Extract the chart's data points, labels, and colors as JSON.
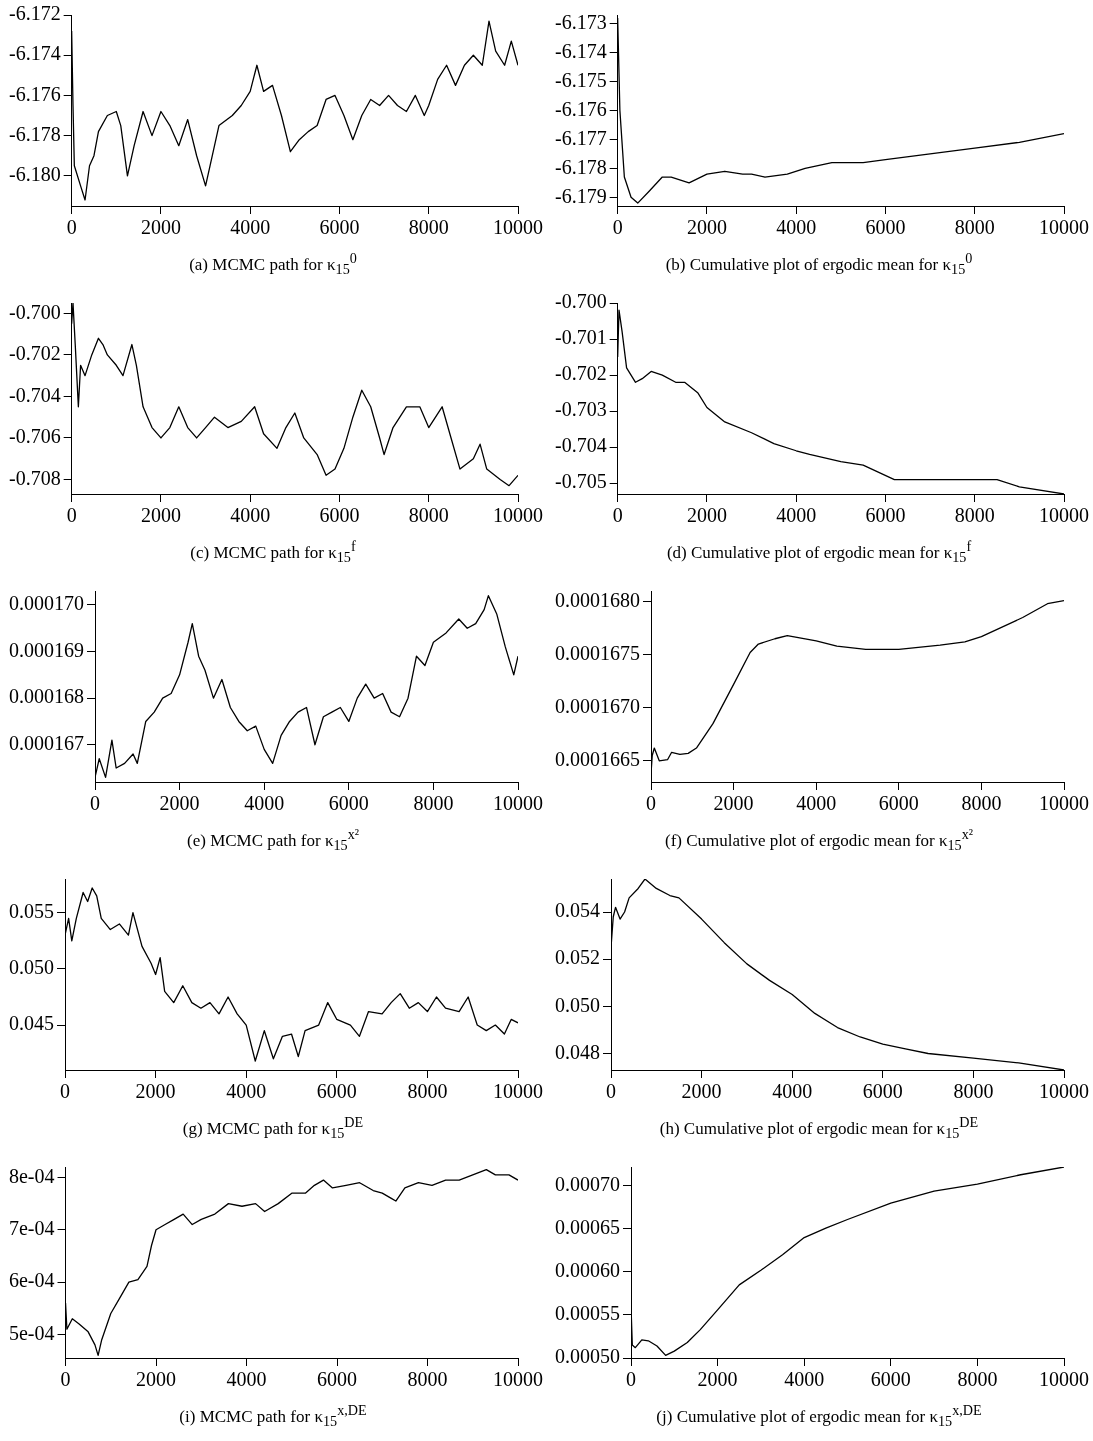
{
  "chart_data": [
    {
      "type": "line",
      "title": "(a) MCMC path for κ$_{15}$$^{0}$",
      "color": "#000000",
      "marker": "none",
      "xlim": [
        0,
        10000
      ],
      "xticks": [
        0,
        2000,
        4000,
        6000,
        8000,
        10000
      ],
      "ylim": [
        -6.1815,
        -6.172
      ],
      "yticks": [
        -6.172,
        -6.174,
        -6.176,
        -6.178,
        {
          "value": -6.18,
          "label": "-6.180"
        }
      ],
      "x": [
        0,
        30,
        60,
        200,
        300,
        400,
        500,
        600,
        800,
        1000,
        1100,
        1250,
        1400,
        1600,
        1800,
        2000,
        2200,
        2400,
        2600,
        2800,
        3000,
        3100,
        3300,
        3600,
        3800,
        4000,
        4150,
        4300,
        4500,
        4700,
        4900,
        5100,
        5300,
        5500,
        5700,
        5900,
        6100,
        6300,
        6500,
        6700,
        6900,
        7100,
        7300,
        7500,
        7700,
        7900,
        8000,
        8200,
        8400,
        8600,
        8800,
        9000,
        9200,
        9350,
        9500,
        9700,
        9850,
        10000
      ],
      "values": [
        -6.1728,
        -6.1765,
        -6.1795,
        -6.1805,
        -6.1812,
        -6.1795,
        -6.179,
        -6.1778,
        -6.177,
        -6.1768,
        -6.1775,
        -6.18,
        -6.1785,
        -6.1768,
        -6.178,
        -6.1768,
        -6.1775,
        -6.1785,
        -6.1772,
        -6.179,
        -6.1805,
        -6.1795,
        -6.1775,
        -6.177,
        -6.1765,
        -6.1758,
        -6.1745,
        -6.1758,
        -6.1755,
        -6.177,
        -6.1788,
        -6.1782,
        -6.1778,
        -6.1775,
        -6.1762,
        -6.176,
        -6.177,
        -6.1782,
        -6.177,
        -6.1762,
        -6.1765,
        -6.176,
        -6.1765,
        -6.1768,
        -6.176,
        -6.177,
        -6.1765,
        -6.1752,
        -6.1745,
        -6.1755,
        -6.1745,
        -6.174,
        -6.1745,
        -6.1723,
        -6.1738,
        -6.1745,
        -6.1733,
        -6.1745
      ]
    },
    {
      "type": "line",
      "title": "(b) Cumulative plot of ergodic mean for κ$_{15}$$^{0}$",
      "color": "#000000",
      "marker": "none",
      "xlim": [
        0,
        10000
      ],
      "xticks": [
        0,
        2000,
        4000,
        6000,
        8000,
        10000
      ],
      "ylim": [
        -6.1793,
        -6.1727
      ],
      "yticks": [
        -6.173,
        -6.174,
        -6.175,
        -6.176,
        -6.177,
        -6.178,
        -6.179
      ],
      "x": [
        0,
        50,
        150,
        300,
        450,
        700,
        1000,
        1200,
        1600,
        2000,
        2400,
        2800,
        3000,
        3300,
        3800,
        4200,
        4800,
        5500,
        6000,
        7000,
        8000,
        9000,
        10000
      ],
      "values": [
        -6.1728,
        -6.176,
        -6.1783,
        -6.179,
        -6.1792,
        -6.1788,
        -6.1783,
        -6.1783,
        -6.1785,
        -6.1782,
        -6.1781,
        -6.1782,
        -6.1782,
        -6.1783,
        -6.1782,
        -6.178,
        -6.1778,
        -6.1778,
        -6.1777,
        -6.1775,
        -6.1773,
        -6.1771,
        -6.1768
      ]
    },
    {
      "type": "line",
      "title": "(c) MCMC path for κ$_{15}$$^{f}$",
      "color": "#000000",
      "marker": "none",
      "xlim": [
        0,
        10000
      ],
      "xticks": [
        0,
        2000,
        4000,
        6000,
        8000,
        10000
      ],
      "ylim": [
        -0.7087,
        -0.6995
      ],
      "yticks": [
        {
          "value": -0.7,
          "label": "-0.700"
        },
        -0.702,
        -0.704,
        -0.706,
        -0.708
      ],
      "x": [
        0,
        30,
        80,
        150,
        200,
        300,
        450,
        600,
        700,
        800,
        1000,
        1150,
        1350,
        1450,
        1600,
        1800,
        2000,
        2200,
        2400,
        2600,
        2800,
        3000,
        3200,
        3500,
        3800,
        4100,
        4300,
        4600,
        4800,
        5000,
        5200,
        5500,
        5700,
        5900,
        6100,
        6300,
        6500,
        6700,
        6900,
        7000,
        7200,
        7500,
        7800,
        8000,
        8300,
        8500,
        8700,
        9000,
        9150,
        9300,
        9600,
        9800,
        10000
      ],
      "values": [
        -0.7005,
        -0.6995,
        -0.7015,
        -0.7045,
        -0.7025,
        -0.703,
        -0.702,
        -0.7012,
        -0.7015,
        -0.702,
        -0.7025,
        -0.703,
        -0.7015,
        -0.7025,
        -0.7045,
        -0.7055,
        -0.706,
        -0.7055,
        -0.7045,
        -0.7055,
        -0.706,
        -0.7055,
        -0.705,
        -0.7055,
        -0.7052,
        -0.7045,
        -0.7058,
        -0.7065,
        -0.7055,
        -0.7048,
        -0.706,
        -0.7068,
        -0.7078,
        -0.7075,
        -0.7065,
        -0.705,
        -0.7037,
        -0.7045,
        -0.706,
        -0.7068,
        -0.7055,
        -0.7045,
        -0.7045,
        -0.7055,
        -0.7045,
        -0.706,
        -0.7075,
        -0.707,
        -0.7063,
        -0.7075,
        -0.708,
        -0.7083,
        -0.7078
      ]
    },
    {
      "type": "line",
      "title": "(d) Cumulative plot of ergodic mean for κ$_{15}$$^{f}$",
      "color": "#000000",
      "marker": "none",
      "xlim": [
        0,
        10000
      ],
      "xticks": [
        0,
        2000,
        4000,
        6000,
        8000,
        10000
      ],
      "ylim": [
        -0.7053,
        -0.7
      ],
      "yticks": [
        {
          "value": -0.7,
          "label": "-0.700"
        },
        -0.701,
        -0.702,
        -0.703,
        -0.704,
        -0.705
      ],
      "x": [
        0,
        30,
        100,
        200,
        400,
        550,
        750,
        1000,
        1300,
        1500,
        1800,
        2000,
        2400,
        3000,
        3500,
        4000,
        4300,
        5000,
        5500,
        6200,
        7000,
        8500,
        9000,
        10000
      ],
      "values": [
        -0.7015,
        -0.7002,
        -0.7008,
        -0.7018,
        -0.7022,
        -0.7021,
        -0.7019,
        -0.702,
        -0.7022,
        -0.7022,
        -0.7025,
        -0.7029,
        -0.7033,
        -0.7036,
        -0.7039,
        -0.7041,
        -0.7042,
        -0.7044,
        -0.7045,
        -0.7049,
        -0.7049,
        -0.7049,
        -0.7051,
        -0.7053
      ]
    },
    {
      "type": "line",
      "title": "(e) MCMC path for κ$_{15}$$^{x²}$",
      "color": "#000000",
      "marker": "none",
      "xlim": [
        0,
        10000
      ],
      "xticks": [
        0,
        2000,
        4000,
        6000,
        8000,
        10000
      ],
      "ylim": [
        0.0001662,
        0.0001703
      ],
      "yticks": [
        {
          "value": 0.00017,
          "label": "0.000170"
        },
        0.000169,
        0.000168,
        0.000167
      ],
      "x": [
        0,
        100,
        250,
        400,
        500,
        700,
        900,
        1000,
        1200,
        1400,
        1600,
        1800,
        2000,
        2200,
        2300,
        2450,
        2600,
        2800,
        3000,
        3200,
        3400,
        3600,
        3800,
        4000,
        4200,
        4400,
        4600,
        4800,
        5000,
        5200,
        5400,
        5600,
        5800,
        6000,
        6200,
        6400,
        6600,
        6800,
        7000,
        7200,
        7400,
        7600,
        7800,
        8000,
        8300,
        8600,
        8800,
        9000,
        9200,
        9300,
        9500,
        9700,
        9900,
        10000
      ],
      "values": [
        0.0001663,
        0.0001667,
        0.0001663,
        0.0001671,
        0.0001665,
        0.0001666,
        0.0001668,
        0.0001666,
        0.0001675,
        0.0001677,
        0.000168,
        0.0001681,
        0.0001685,
        0.0001692,
        0.0001696,
        0.0001689,
        0.0001686,
        0.000168,
        0.0001684,
        0.0001678,
        0.0001675,
        0.0001673,
        0.0001674,
        0.0001669,
        0.0001666,
        0.0001672,
        0.0001675,
        0.0001677,
        0.0001678,
        0.000167,
        0.0001676,
        0.0001677,
        0.0001678,
        0.0001675,
        0.000168,
        0.0001683,
        0.000168,
        0.0001681,
        0.0001677,
        0.0001676,
        0.000168,
        0.0001689,
        0.0001687,
        0.0001692,
        0.0001694,
        0.0001697,
        0.0001695,
        0.0001696,
        0.0001699,
        0.0001702,
        0.0001698,
        0.0001691,
        0.0001685,
        0.0001689
      ]
    },
    {
      "type": "line",
      "title": "(f) Cumulative plot of ergodic mean for κ$_{15}$$^{x²}$",
      "color": "#000000",
      "marker": "none",
      "xlim": [
        0,
        10000
      ],
      "xticks": [
        0,
        2000,
        4000,
        6000,
        8000,
        10000
      ],
      "ylim": [
        0.0001663,
        0.0001681
      ],
      "yticks": [
        {
          "value": 0.000168,
          "label": "0.0001680"
        },
        0.0001675,
        {
          "value": 0.000167,
          "label": "0.0001670"
        },
        0.0001665
      ],
      "x": [
        0,
        30,
        80,
        200,
        400,
        500,
        700,
        900,
        1100,
        1500,
        2000,
        2400,
        2600,
        3000,
        3300,
        4000,
        4500,
        5200,
        6000,
        7000,
        7600,
        8000,
        9000,
        9600,
        10000
      ],
      "values": [
        0.00016638,
        0.00016655,
        0.00016662,
        0.0001665,
        0.00016651,
        0.00016658,
        0.00016656,
        0.00016657,
        0.00016662,
        0.00016685,
        0.00016722,
        0.00016752,
        0.0001676,
        0.00016765,
        0.00016768,
        0.00016763,
        0.00016758,
        0.00016755,
        0.00016755,
        0.00016759,
        0.00016762,
        0.00016767,
        0.00016785,
        0.00016798,
        0.00016801
      ]
    },
    {
      "type": "line",
      "title": "(g) MCMC path for κ$_{15}$$^{DE}$",
      "color": "#000000",
      "marker": "none",
      "xlim": [
        0,
        10000
      ],
      "xticks": [
        0,
        2000,
        4000,
        6000,
        8000,
        10000
      ],
      "ylim": [
        0.041,
        0.058
      ],
      "yticks": [
        0.055,
        {
          "value": 0.05,
          "label": "0.050"
        },
        0.045
      ],
      "x": [
        0,
        80,
        150,
        250,
        400,
        500,
        600,
        700,
        800,
        1000,
        1200,
        1400,
        1500,
        1700,
        1900,
        2000,
        2100,
        2200,
        2400,
        2600,
        2800,
        3000,
        3200,
        3400,
        3600,
        3800,
        4000,
        4200,
        4400,
        4600,
        4800,
        5000,
        5150,
        5300,
        5600,
        5800,
        6000,
        6300,
        6500,
        6700,
        7000,
        7200,
        7400,
        7600,
        7800,
        8000,
        8200,
        8400,
        8700,
        8900,
        9100,
        9300,
        9500,
        9700,
        9850,
        10000
      ],
      "values": [
        0.053,
        0.0545,
        0.0525,
        0.0545,
        0.0568,
        0.056,
        0.0572,
        0.0565,
        0.0545,
        0.0535,
        0.054,
        0.053,
        0.055,
        0.052,
        0.0505,
        0.0495,
        0.051,
        0.048,
        0.047,
        0.0485,
        0.047,
        0.0465,
        0.047,
        0.046,
        0.0475,
        0.046,
        0.045,
        0.0418,
        0.0445,
        0.042,
        0.044,
        0.0442,
        0.0422,
        0.0445,
        0.045,
        0.047,
        0.0455,
        0.045,
        0.044,
        0.0462,
        0.046,
        0.047,
        0.0478,
        0.0465,
        0.047,
        0.0462,
        0.0475,
        0.0465,
        0.0462,
        0.0475,
        0.045,
        0.0445,
        0.045,
        0.0442,
        0.0455,
        0.0452
      ]
    },
    {
      "type": "line",
      "title": "(h) Cumulative plot of ergodic mean for κ$_{15}$$^{DE}$",
      "color": "#000000",
      "marker": "none",
      "xlim": [
        0,
        10000
      ],
      "xticks": [
        0,
        2000,
        4000,
        6000,
        8000,
        10000
      ],
      "ylim": [
        0.0473,
        0.0554
      ],
      "yticks": [
        0.054,
        0.052,
        {
          "value": 0.05,
          "label": "0.050"
        },
        0.048
      ],
      "x": [
        0,
        50,
        100,
        200,
        300,
        400,
        600,
        750,
        1000,
        1300,
        1500,
        2000,
        2500,
        3000,
        3500,
        4000,
        4500,
        5000,
        5500,
        6000,
        6500,
        7000,
        8000,
        9000,
        10000
      ],
      "values": [
        0.0525,
        0.0538,
        0.0542,
        0.0537,
        0.054,
        0.0546,
        0.055,
        0.0554,
        0.055,
        0.0547,
        0.0546,
        0.0537,
        0.0527,
        0.0518,
        0.0511,
        0.0505,
        0.0497,
        0.0491,
        0.0487,
        0.0484,
        0.0482,
        0.048,
        0.0478,
        0.0476,
        0.0473
      ]
    },
    {
      "type": "line",
      "title": "(i) MCMC path for κ$_{15}$$^{x,DE}$",
      "color": "#000000",
      "marker": "none",
      "xlim": [
        0,
        10000
      ],
      "xticks": [
        0,
        2000,
        4000,
        6000,
        8000,
        10000
      ],
      "ylim": [
        0.000455,
        0.00082
      ],
      "yticks": [
        {
          "value": 0.0008,
          "label": "8e-04"
        },
        {
          "value": 0.0007,
          "label": "7e-04"
        },
        {
          "value": 0.0006,
          "label": "6e-04"
        },
        {
          "value": 0.0005,
          "label": "5e-04"
        }
      ],
      "x": [
        0,
        30,
        150,
        300,
        500,
        650,
        720,
        800,
        1000,
        1200,
        1400,
        1600,
        1800,
        1900,
        2000,
        2200,
        2400,
        2600,
        2800,
        3000,
        3300,
        3600,
        3900,
        4200,
        4400,
        4700,
        5000,
        5300,
        5500,
        5700,
        5900,
        6200,
        6500,
        6800,
        7000,
        7200,
        7300,
        7500,
        7800,
        8100,
        8400,
        8700,
        9000,
        9300,
        9500,
        9800,
        10000
      ],
      "values": [
        0.00056,
        0.00051,
        0.00053,
        0.00052,
        0.000505,
        0.00048,
        0.00046,
        0.00049,
        0.00054,
        0.00057,
        0.0006,
        0.000605,
        0.00063,
        0.00067,
        0.0007,
        0.00071,
        0.00072,
        0.00073,
        0.00071,
        0.00072,
        0.00073,
        0.00075,
        0.000745,
        0.00075,
        0.000735,
        0.00075,
        0.00077,
        0.00077,
        0.000785,
        0.000795,
        0.00078,
        0.000785,
        0.00079,
        0.000775,
        0.00077,
        0.00076,
        0.000755,
        0.00078,
        0.00079,
        0.000785,
        0.000795,
        0.000795,
        0.000805,
        0.000815,
        0.000805,
        0.000805,
        0.000795
      ]
    },
    {
      "type": "line",
      "title": "(j) Cumulative plot of ergodic mean for κ$_{15}$$^{x,DE}$",
      "color": "#000000",
      "marker": "none",
      "xlim": [
        0,
        10000
      ],
      "xticks": [
        0,
        2000,
        4000,
        6000,
        8000,
        10000
      ],
      "ylim": [
        0.0005,
        0.000722
      ],
      "yticks": [
        {
          "value": 0.0007,
          "label": "0.00070"
        },
        0.00065,
        {
          "value": 0.0006,
          "label": "0.00060"
        },
        0.00055,
        {
          "value": 0.0005,
          "label": "0.00050"
        }
      ],
      "x": [
        0,
        30,
        100,
        250,
        400,
        600,
        800,
        1000,
        1300,
        1600,
        2000,
        2500,
        3000,
        3500,
        4000,
        4500,
        5000,
        6000,
        7000,
        8000,
        9000,
        10000
      ],
      "values": [
        0.00056,
        0.000515,
        0.000512,
        0.000521,
        0.00052,
        0.000514,
        0.000503,
        0.000508,
        0.000518,
        0.000533,
        0.000556,
        0.000585,
        0.000602,
        0.00062,
        0.00064,
        0.000651,
        0.000661,
        0.00068,
        0.000694,
        0.000702,
        0.000713,
        0.000722
      ]
    }
  ]
}
